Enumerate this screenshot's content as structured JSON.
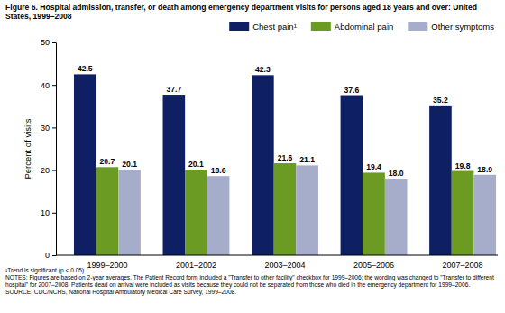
{
  "chart_data": {
    "type": "bar",
    "title": "Figure 6. Hospital admission, transfer, or death among emergency department visits for persons aged 18 years and over: United States, 1999–2008",
    "y_label": "Percent of visits",
    "categories": [
      "1999–2000",
      "2001–2002",
      "2003–2004",
      "2005–2006",
      "2007–2008"
    ],
    "series": [
      {
        "name": "Chest pain¹",
        "color": "#0e1f64",
        "values": [
          42.5,
          37.7,
          42.3,
          37.6,
          35.2
        ],
        "value_labels": [
          "42.5",
          "37.7",
          "42.3",
          "37.6",
          "35.2"
        ]
      },
      {
        "name": "Abdominal pain",
        "color": "#6b9b22",
        "values": [
          20.7,
          20.1,
          21.6,
          19.4,
          19.8
        ],
        "value_labels": [
          "20.7",
          "20.1",
          "21.6",
          "19.4",
          "19.8"
        ]
      },
      {
        "name": "Other symptoms",
        "color": "#a5adcb",
        "values": [
          20.1,
          18.6,
          21.1,
          18.0,
          18.9
        ],
        "value_labels": [
          "20.1",
          "18.6",
          "21.1",
          "18.0",
          "18.9"
        ]
      }
    ],
    "ylim": [
      0,
      50
    ],
    "yticks": [
      0,
      10,
      20,
      30,
      40,
      50
    ],
    "grid": false,
    "legend": "top-right",
    "data_labels": true,
    "annotations": [
      "¹Trend is significant (p < 0.05).",
      "NOTES: Figures are based on 2-year averages. The Patient Record form included a \"Transfer to other facility\" checkbox for 1999–2006; the wording was changed to \"Transfer to different hospital\" for 2007–2008. Patients dead on arrival were included as visits because they could not be separated from those who died in the emergency department for 1999–2006.",
      "SOURCE: CDC/NCHS, National Hospital Ambulatory Medical Care Survey, 1999–2008."
    ]
  }
}
